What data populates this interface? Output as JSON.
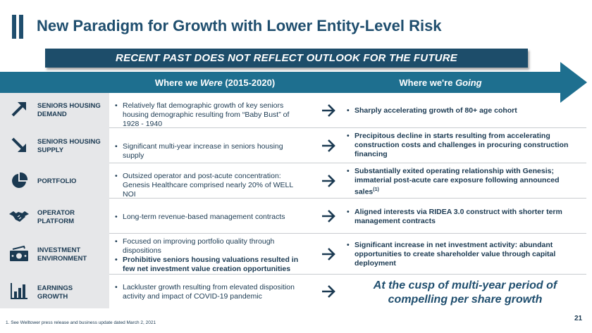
{
  "slide": {
    "title": "New Paradigm for Growth with Lower Entity-Level Risk",
    "banner": "RECENT PAST DOES NOT REFLECT OUTLOOK FOR THE FUTURE",
    "header_were_prefix": "Where we ",
    "header_were_italic": "Were",
    "header_were_suffix": " (2015-2020)",
    "header_going_prefix": "Where we're ",
    "header_going_italic": "Going",
    "page_number": "21",
    "footnote": "1. See Welltower press release and business update dated March 2, 2021",
    "colors": {
      "navy": "#1f4e6e",
      "band": "#1e6f8f",
      "panel": "#e6e7e9"
    }
  },
  "rows": [
    {
      "icon": "arrow-up-right-icon",
      "label_l1": "SENIORS HOUSING",
      "label_l2": "DEMAND",
      "were_1": "Relatively flat demographic growth of key seniors housing demographic resulting from “Baby Bust” of 1928 - 1940",
      "going": "Sharply accelerating growth of 80+ age cohort"
    },
    {
      "icon": "arrow-down-right-icon",
      "label_l1": "SENIORS HOUSING",
      "label_l2": "SUPPLY",
      "were_1": "Significant multi-year increase in seniors housing supply",
      "going": "Precipitous decline in starts resulting from accelerating construction costs and challenges in procuring construction financing"
    },
    {
      "icon": "pie-chart-icon",
      "label_l1": "PORTFOLIO",
      "label_l2": "",
      "were_1": "Outsized operator and post-acute concentration: Genesis Healthcare comprised nearly 20% of WELL NOI",
      "going": "Substantially exited operating relationship with Genesis; immaterial post-acute care exposure following announced sales",
      "going_sup": "(1)"
    },
    {
      "icon": "handshake-icon",
      "label_l1": "OPERATOR",
      "label_l2": "PLATFORM",
      "were_1": "Long-term revenue-based management contracts",
      "going": "Aligned interests via RIDEA 3.0 construct with shorter term management contracts"
    },
    {
      "icon": "money-icon",
      "label_l1": "INVESTMENT",
      "label_l2": "ENVIRONMENT",
      "were_1": "Focused on improving portfolio quality through dispositions",
      "were_2": "Prohibitive seniors housing valuations resulted in few net investment value creation opportunities",
      "going": "Significant increase in net investment activity: abundant opportunities to create shareholder value through capital deployment"
    },
    {
      "icon": "bar-chart-icon",
      "label_l1": "EARNINGS",
      "label_l2": "GROWTH",
      "were_1": "Lackluster growth resulting from elevated disposition activity and impact of COVID-19 pandemic",
      "going_cusp": "At the cusp of multi-year period of compelling per share growth"
    }
  ]
}
